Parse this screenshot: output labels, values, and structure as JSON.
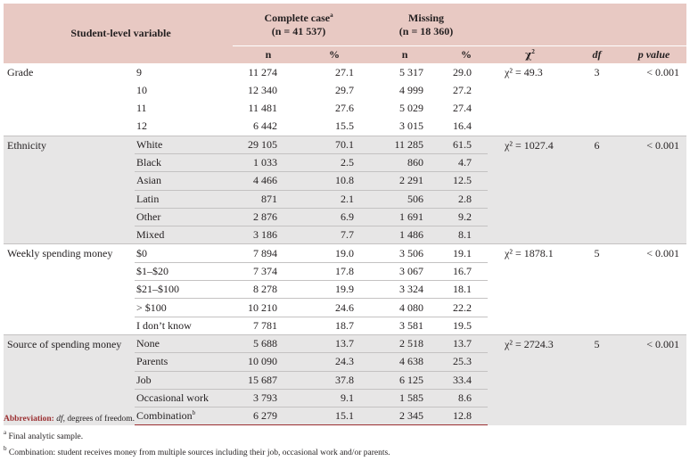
{
  "header": {
    "variable_label": "Student-level variable",
    "complete_case_label": "Complete case",
    "complete_case_sup": "a",
    "complete_case_n": "(n = 41 537)",
    "missing_label": "Missing",
    "missing_n": "(n = 18 360)",
    "col_n1": "n",
    "col_pct1": "%",
    "col_n2": "n",
    "col_pct2": "%",
    "col_chi_symbol": "χ",
    "col_chi_sup": "2",
    "col_df": "df",
    "col_p": "p value"
  },
  "groups": [
    {
      "variable": "Grade",
      "chi": "χ² = 49.3",
      "df": "3",
      "p": "< 0.001",
      "rows": [
        {
          "category": "9",
          "n_cc": "11 274",
          "pct_cc": "27.1",
          "n_miss": "5 317",
          "pct_miss": "29.0"
        },
        {
          "category": "10",
          "n_cc": "12 340",
          "pct_cc": "29.7",
          "n_miss": "4 999",
          "pct_miss": "27.2"
        },
        {
          "category": "11",
          "n_cc": "11 481",
          "pct_cc": "27.6",
          "n_miss": "5 029",
          "pct_miss": "27.4"
        },
        {
          "category": "12",
          "n_cc": "6 442",
          "pct_cc": "15.5",
          "n_miss": "3 015",
          "pct_miss": "16.4"
        }
      ]
    },
    {
      "variable": "Ethnicity",
      "chi": "χ² = 1027.4",
      "df": "6",
      "p": "< 0.001",
      "rows": [
        {
          "category": "White",
          "n_cc": "29 105",
          "pct_cc": "70.1",
          "n_miss": "11 285",
          "pct_miss": "61.5"
        },
        {
          "category": "Black",
          "n_cc": "1 033",
          "pct_cc": "2.5",
          "n_miss": "860",
          "pct_miss": "4.7"
        },
        {
          "category": "Asian",
          "n_cc": "4 466",
          "pct_cc": "10.8",
          "n_miss": "2 291",
          "pct_miss": "12.5"
        },
        {
          "category": "Latin",
          "n_cc": "871",
          "pct_cc": "2.1",
          "n_miss": "506",
          "pct_miss": "2.8"
        },
        {
          "category": "Other",
          "n_cc": "2 876",
          "pct_cc": "6.9",
          "n_miss": "1 691",
          "pct_miss": "9.2"
        },
        {
          "category": "Mixed",
          "n_cc": "3 186",
          "pct_cc": "7.7",
          "n_miss": "1 486",
          "pct_miss": "8.1"
        }
      ]
    },
    {
      "variable": "Weekly spending money",
      "chi": "χ² = 1878.1",
      "df": "5",
      "p": "< 0.001",
      "rows": [
        {
          "category": "$0",
          "n_cc": "7 894",
          "pct_cc": "19.0",
          "n_miss": "3 506",
          "pct_miss": "19.1"
        },
        {
          "category": "$1–$20",
          "n_cc": "7 374",
          "pct_cc": "17.8",
          "n_miss": "3 067",
          "pct_miss": "16.7"
        },
        {
          "category": "$21–$100",
          "n_cc": "8 278",
          "pct_cc": "19.9",
          "n_miss": "3 324",
          "pct_miss": "18.1"
        },
        {
          "category": "> $100",
          "n_cc": "10 210",
          "pct_cc": "24.6",
          "n_miss": "4 080",
          "pct_miss": "22.2"
        },
        {
          "category": "I don’t know",
          "n_cc": "7 781",
          "pct_cc": "18.7",
          "n_miss": "3 581",
          "pct_miss": "19.5"
        }
      ]
    },
    {
      "variable": "Source of spending money",
      "chi": "χ² = 2724.3",
      "df": "5",
      "p": "< 0.001",
      "rows": [
        {
          "category": "None",
          "n_cc": "5 688",
          "pct_cc": "13.7",
          "n_miss": "2 518",
          "pct_miss": "13.7"
        },
        {
          "category": "Parents",
          "n_cc": "10 090",
          "pct_cc": "24.3",
          "n_miss": "4 638",
          "pct_miss": "25.3"
        },
        {
          "category": "Job",
          "n_cc": "15 687",
          "pct_cc": "37.8",
          "n_miss": "6 125",
          "pct_miss": "33.4"
        },
        {
          "category": "Occasional work",
          "n_cc": "3 793",
          "pct_cc": "9.1",
          "n_miss": "1 585",
          "pct_miss": "8.6"
        },
        {
          "category": "Combination",
          "category_sup": "b",
          "n_cc": "6 279",
          "pct_cc": "15.1",
          "n_miss": "2 345",
          "pct_miss": "12.8"
        }
      ]
    }
  ],
  "footnotes": {
    "abbreviation_label": "Abbreviation:",
    "abbreviation_term": "df",
    "abbreviation_text": ", degrees of freedom.",
    "note_a_mark": "a",
    "note_a": "Final analytic sample.",
    "note_b_mark": "b",
    "note_b": "Combination: student receives money from multiple sources including their job, occasional work and/or parents."
  }
}
